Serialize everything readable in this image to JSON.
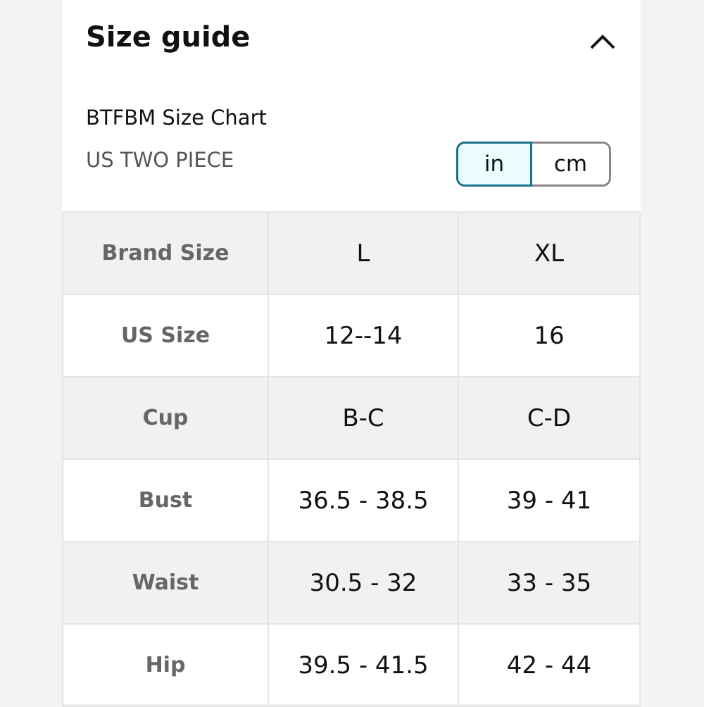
{
  "header": {
    "title": "Size guide"
  },
  "chart": {
    "name": "BTFBM Size Chart",
    "subtitle": "US TWO PIECE",
    "units": [
      "in",
      "cm"
    ]
  },
  "table": {
    "rows": [
      [
        "Brand Size",
        "L",
        "XL"
      ],
      [
        "US Size",
        "12--14",
        "16"
      ],
      [
        "Cup",
        "B-C",
        "C-D"
      ],
      [
        "Bust",
        "36.5 - 38.5",
        "39 - 41"
      ],
      [
        "Waist",
        "30.5 - 32",
        "33 - 35"
      ],
      [
        "Hip",
        "39.5 - 41.5",
        "42 - 44"
      ]
    ]
  }
}
